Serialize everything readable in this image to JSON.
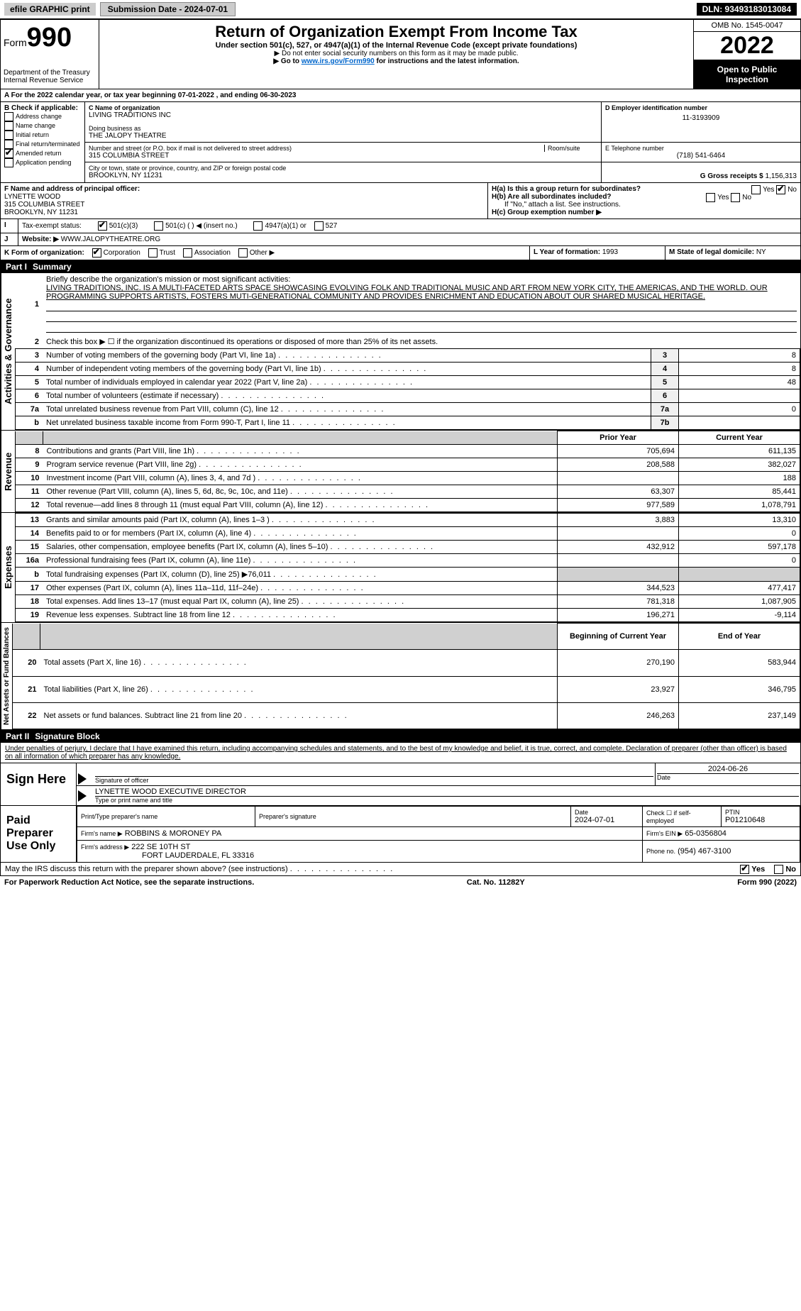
{
  "topbar": {
    "efile": "efile GRAPHIC print",
    "submission": "Submission Date - 2024-07-01",
    "dln": "DLN: 93493183013084"
  },
  "header": {
    "form": "Form",
    "formno": "990",
    "dept": "Department of the Treasury",
    "irs": "Internal Revenue Service",
    "title": "Return of Organization Exempt From Income Tax",
    "sub": "Under section 501(c), 527, or 4947(a)(1) of the Internal Revenue Code (except private foundations)",
    "note1": "▶ Do not enter social security numbers on this form as it may be made public.",
    "note2": "▶ Go to ",
    "note2link": "www.irs.gov/Form990",
    "note2b": " for instructions and the latest information.",
    "omb": "OMB No. 1545-0047",
    "year": "2022",
    "open": "Open to Public Inspection"
  },
  "A": {
    "line": "For the 2022 calendar year, or tax year beginning 07-01-2022    , and ending 06-30-2023"
  },
  "B": {
    "hdr": "B Check if applicable:",
    "items": [
      "Address change",
      "Name change",
      "Initial return",
      "Final return/terminated",
      "Amended return",
      "Application pending"
    ],
    "checked": [
      false,
      false,
      false,
      false,
      true,
      false
    ]
  },
  "C": {
    "lbl": "C Name of organization",
    "name": "LIVING TRADITIONS INC",
    "dba_lbl": "Doing business as",
    "dba": "THE JALOPY THEATRE",
    "addr_lbl": "Number and street (or P.O. box if mail is not delivered to street address)",
    "room_lbl": "Room/suite",
    "addr": "315 COLUMBIA STREET",
    "city_lbl": "City or town, state or province, country, and ZIP or foreign postal code",
    "city": "BROOKLYN, NY  11231"
  },
  "D": {
    "lbl": "D Employer identification number",
    "val": "11-3193909"
  },
  "E": {
    "lbl": "E Telephone number",
    "val": "(718) 541-6464"
  },
  "G": {
    "lbl": "G Gross receipts $",
    "val": "1,156,313"
  },
  "F": {
    "lbl": "F  Name and address of principal officer:",
    "name": "LYNETTE WOOD",
    "addr": "315 COLUMBIA STREET",
    "city": "BROOKLYN, NY  11231"
  },
  "H": {
    "a": "H(a)  Is this a group return for subordinates?",
    "b": "H(b)  Are all subordinates included?",
    "bnote": "If \"No,\" attach a list. See instructions.",
    "c": "H(c)  Group exemption number ▶",
    "yes": "Yes",
    "no": "No"
  },
  "I": {
    "lbl": "Tax-exempt status:",
    "opts": [
      "501(c)(3)",
      "501(c) (  ) ◀ (insert no.)",
      "4947(a)(1) or",
      "527"
    ]
  },
  "J": {
    "lbl": "Website: ▶",
    "val": "WWW.JALOPYTHEATRE.ORG"
  },
  "K": {
    "lbl": "K Form of organization:",
    "opts": [
      "Corporation",
      "Trust",
      "Association",
      "Other ▶"
    ]
  },
  "L": {
    "lbl": "L Year of formation:",
    "val": "1993"
  },
  "M": {
    "lbl": "M State of legal domicile:",
    "val": "NY"
  },
  "part1": {
    "hdr": "Part I",
    "title": "Summary"
  },
  "p1": {
    "l1": "Briefly describe the organization's mission or most significant activities:",
    "mission": "LIVING TRADITIONS, INC. IS A MULTI-FACETED ARTS SPACE SHOWCASING EVOLVING FOLK AND TRADITIONAL MUSIC AND ART FROM NEW YORK CITY, THE AMERICAS, AND THE WORLD. OUR PROGRAMMING SUPPORTS ARTISTS, FOSTERS MUTI-GENERATIONAL COMMUNITY AND PROVIDES ENRICHMENT AND EDUCATION ABOUT OUR SHARED MUSICAL HERITAGE.",
    "l2": "Check this box ▶ ☐ if the organization discontinued its operations or disposed of more than 25% of its net assets.",
    "rows_gov": [
      {
        "n": "3",
        "d": "Number of voting members of the governing body (Part VI, line 1a)",
        "box": "3",
        "v": "8"
      },
      {
        "n": "4",
        "d": "Number of independent voting members of the governing body (Part VI, line 1b)",
        "box": "4",
        "v": "8"
      },
      {
        "n": "5",
        "d": "Total number of individuals employed in calendar year 2022 (Part V, line 2a)",
        "box": "5",
        "v": "48"
      },
      {
        "n": "6",
        "d": "Total number of volunteers (estimate if necessary)",
        "box": "6",
        "v": ""
      },
      {
        "n": "7a",
        "d": "Total unrelated business revenue from Part VIII, column (C), line 12",
        "box": "7a",
        "v": "0"
      },
      {
        "n": "b",
        "d": "Net unrelated business taxable income from Form 990-T, Part I, line 11",
        "box": "7b",
        "v": ""
      }
    ],
    "prior": "Prior Year",
    "curr": "Current Year",
    "rows_rev": [
      {
        "n": "8",
        "d": "Contributions and grants (Part VIII, line 1h)",
        "p": "705,694",
        "c": "611,135"
      },
      {
        "n": "9",
        "d": "Program service revenue (Part VIII, line 2g)",
        "p": "208,588",
        "c": "382,027"
      },
      {
        "n": "10",
        "d": "Investment income (Part VIII, column (A), lines 3, 4, and 7d )",
        "p": "",
        "c": "188"
      },
      {
        "n": "11",
        "d": "Other revenue (Part VIII, column (A), lines 5, 6d, 8c, 9c, 10c, and 11e)",
        "p": "63,307",
        "c": "85,441"
      },
      {
        "n": "12",
        "d": "Total revenue—add lines 8 through 11 (must equal Part VIII, column (A), line 12)",
        "p": "977,589",
        "c": "1,078,791"
      }
    ],
    "rows_exp": [
      {
        "n": "13",
        "d": "Grants and similar amounts paid (Part IX, column (A), lines 1–3 )",
        "p": "3,883",
        "c": "13,310"
      },
      {
        "n": "14",
        "d": "Benefits paid to or for members (Part IX, column (A), line 4)",
        "p": "",
        "c": "0"
      },
      {
        "n": "15",
        "d": "Salaries, other compensation, employee benefits (Part IX, column (A), lines 5–10)",
        "p": "432,912",
        "c": "597,178"
      },
      {
        "n": "16a",
        "d": "Professional fundraising fees (Part IX, column (A), line 11e)",
        "p": "",
        "c": "0"
      },
      {
        "n": "b",
        "d": "Total fundraising expenses (Part IX, column (D), line 25) ▶76,011",
        "p": "shade",
        "c": "shade"
      },
      {
        "n": "17",
        "d": "Other expenses (Part IX, column (A), lines 11a–11d, 11f–24e)",
        "p": "344,523",
        "c": "477,417"
      },
      {
        "n": "18",
        "d": "Total expenses. Add lines 13–17 (must equal Part IX, column (A), line 25)",
        "p": "781,318",
        "c": "1,087,905"
      },
      {
        "n": "19",
        "d": "Revenue less expenses. Subtract line 18 from line 12",
        "p": "196,271",
        "c": "-9,114"
      }
    ],
    "boy": "Beginning of Current Year",
    "eoy": "End of Year",
    "rows_net": [
      {
        "n": "20",
        "d": "Total assets (Part X, line 16)",
        "p": "270,190",
        "c": "583,944"
      },
      {
        "n": "21",
        "d": "Total liabilities (Part X, line 26)",
        "p": "23,927",
        "c": "346,795"
      },
      {
        "n": "22",
        "d": "Net assets or fund balances. Subtract line 21 from line 20",
        "p": "246,263",
        "c": "237,149"
      }
    ]
  },
  "part2": {
    "hdr": "Part II",
    "title": "Signature Block"
  },
  "sig": {
    "decl": "Under penalties of perjury, I declare that I have examined this return, including accompanying schedules and statements, and to the best of my knowledge and belief, it is true, correct, and complete. Declaration of preparer (other than officer) is based on all information of which preparer has any knowledge.",
    "sign": "Sign Here",
    "sigoff": "Signature of officer",
    "date": "Date",
    "sigdate": "2024-06-26",
    "name": "LYNETTE WOOD  EXECUTIVE DIRECTOR",
    "namelbl": "Type or print name and title",
    "paid": "Paid Preparer Use Only",
    "pcol": [
      "Print/Type preparer's name",
      "Preparer's signature",
      "Date",
      "Check ☐ if self-employed",
      "PTIN"
    ],
    "pdate": "2024-07-01",
    "ptin": "P01210648",
    "firm_lbl": "Firm's name    ▶",
    "firm": "ROBBINS & MORONEY PA",
    "ein_lbl": "Firm's EIN ▶",
    "ein": "65-0356804",
    "faddr_lbl": "Firm's address ▶",
    "faddr1": "222 SE 10TH ST",
    "faddr2": "FORT LAUDERDALE, FL  33316",
    "phone_lbl": "Phone no.",
    "phone": "(954) 467-3100",
    "may": "May the IRS discuss this return with the preparer shown above? (see instructions)"
  },
  "footer": {
    "pra": "For Paperwork Reduction Act Notice, see the separate instructions.",
    "cat": "Cat. No. 11282Y",
    "form": "Form 990 (2022)"
  },
  "sides": {
    "gov": "Activities & Governance",
    "rev": "Revenue",
    "exp": "Expenses",
    "net": "Net Assets or Fund Balances"
  }
}
